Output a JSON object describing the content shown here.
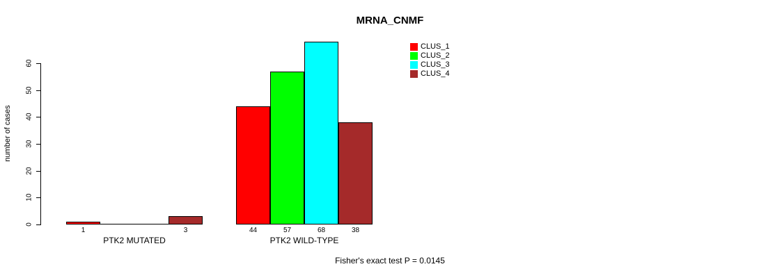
{
  "chart_data": {
    "type": "bar",
    "title": "MRNA_CNMF",
    "xlabel": "",
    "ylabel": "number of cases",
    "ylim": [
      0,
      60
    ],
    "yticks": [
      0,
      10,
      20,
      30,
      40,
      50,
      60
    ],
    "grid": false,
    "legend_position": "top-right",
    "categories": [
      "PTK2 MUTATED",
      "PTK2 WILD-TYPE"
    ],
    "series": [
      {
        "name": "CLUS_1",
        "color": "#FF0000"
      },
      {
        "name": "CLUS_2",
        "color": "#00FF00"
      },
      {
        "name": "CLUS_3",
        "color": "#00FFFF"
      },
      {
        "name": "CLUS_4",
        "color": "#A52A2A"
      }
    ],
    "groups": [
      {
        "label": "PTK2 MUTATED",
        "values": [
          1,
          0,
          0,
          3
        ],
        "value_labels": [
          "1",
          "",
          "",
          "3"
        ]
      },
      {
        "label": "PTK2 WILD-TYPE",
        "values": [
          44,
          57,
          68,
          38
        ],
        "value_labels": [
          "44",
          "57",
          "68",
          "38"
        ]
      }
    ],
    "annotation": "Fisher's exact test P = 0.0145"
  }
}
